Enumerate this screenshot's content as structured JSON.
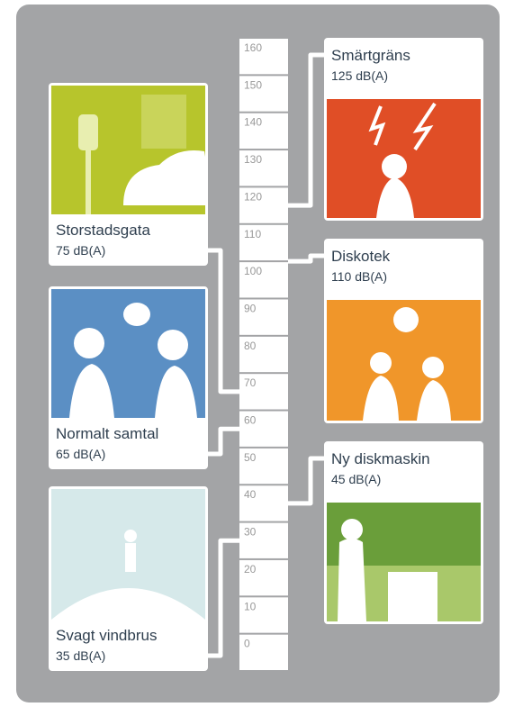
{
  "scale": {
    "ticks": [
      0,
      10,
      20,
      30,
      40,
      50,
      60,
      70,
      80,
      90,
      100,
      110,
      120,
      130,
      140,
      150,
      160
    ]
  },
  "cards": [
    {
      "title": "Smärtgräns",
      "level": {
        "value": 125,
        "label": "125 dB(A)"
      }
    },
    {
      "title": "Storstadsgata",
      "level": {
        "value": 75,
        "label": "75 dB(A)"
      }
    },
    {
      "title": "Diskotek",
      "level": {
        "value": 110,
        "label": "110 dB(A)"
      }
    },
    {
      "title": "Normalt samtal",
      "level": {
        "value": 65,
        "label": "65 dB(A)"
      }
    },
    {
      "title": "Ny diskmaskin",
      "level": {
        "value": 45,
        "label": "45 dB(A)"
      }
    },
    {
      "title": "Svagt vindbrus",
      "level": {
        "value": 35,
        "label": "35 dB(A)"
      }
    }
  ]
}
